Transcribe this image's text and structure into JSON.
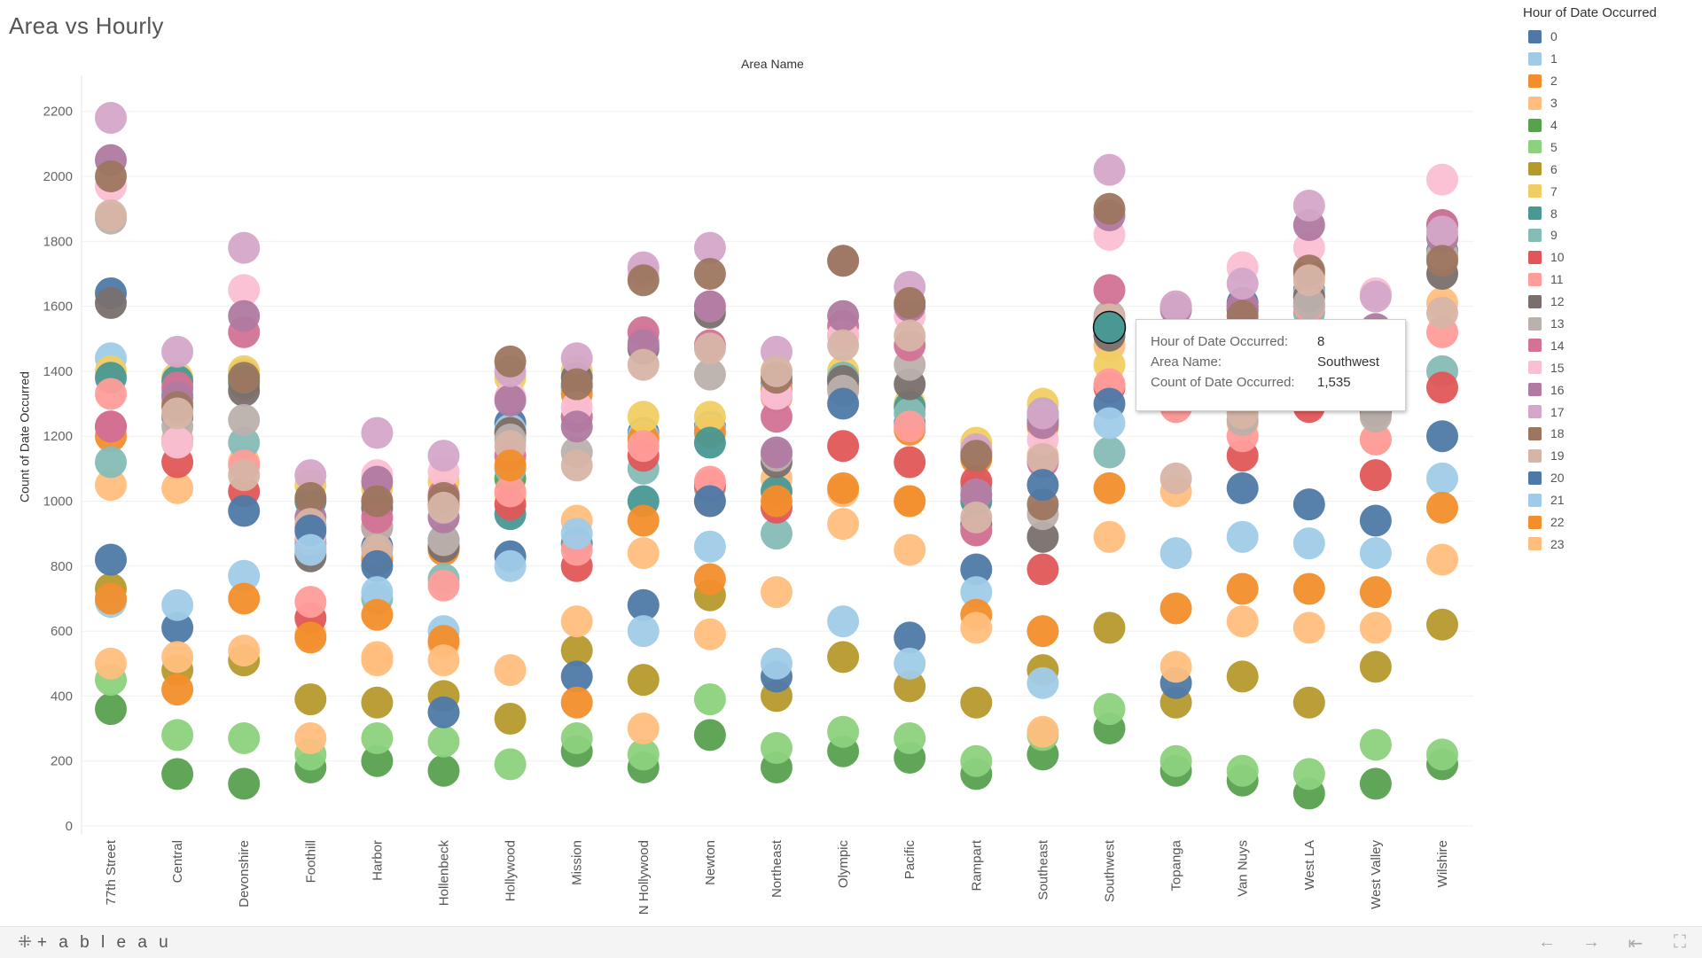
{
  "title": "Area  vs Hourly",
  "column_header": "Area Name",
  "footer": {
    "brand": "+ a b l e a u",
    "brand_mark": "⁜",
    "nav": {
      "back": "←",
      "forward": "→",
      "first": "⇤",
      "fullscreen": "⛶"
    }
  },
  "tooltip": {
    "rows": [
      {
        "key": "Hour of Date Occurred:",
        "value": "8"
      },
      {
        "key": "Area Name:",
        "value": "Southwest"
      },
      {
        "key": "Count of Date Occurred:",
        "value": "1,535"
      }
    ],
    "highlight": {
      "area": "Southwest",
      "hour": 8
    }
  },
  "chart_data": {
    "type": "scatter",
    "ylabel": "Count of Date Occurred",
    "xlabel": "Area Name",
    "ylim": [
      0,
      2250
    ],
    "yticks": [
      0,
      200,
      400,
      600,
      800,
      1000,
      1200,
      1400,
      1600,
      1800,
      2000,
      2200
    ],
    "grid": true,
    "legend": {
      "title": "Hour of Date Occurred",
      "position": "right"
    },
    "categories": [
      "77th Street",
      "Central",
      "Devonshire",
      "Foothill",
      "Harbor",
      "Hollenbeck",
      "Hollywood",
      "Mission",
      "N Hollywood",
      "Newton",
      "Northeast",
      "Olympic",
      "Pacific",
      "Rampart",
      "Southeast",
      "Southwest",
      "Topanga",
      "Van Nuys",
      "West LA",
      "West Valley",
      "Wilshire"
    ],
    "series": [
      {
        "name": "0",
        "color": "#4e79a7",
        "values": [
          1640,
          1330,
          1390,
          870,
          860,
          880,
          1240,
          1350,
          1210,
          1230,
          1360,
          1370,
          1240,
          1150,
          1250,
          1560,
          1320,
          1610,
          1650,
          1290,
          1770
        ]
      },
      {
        "name": "1",
        "color": "#a0cbe8",
        "values": [
          1440,
          1340,
          1380,
          860,
          830,
          860,
          1220,
          1340,
          1200,
          1220,
          1350,
          1360,
          1230,
          1140,
          1240,
          1550,
          1310,
          1600,
          1640,
          1280,
          1760
        ]
      },
      {
        "name": "2",
        "color": "#f28e2b",
        "values": [
          1200,
          1300,
          1360,
          850,
          820,
          850,
          1210,
          1330,
          1190,
          1210,
          1340,
          1350,
          1220,
          1130,
          1230,
          1540,
          1300,
          1590,
          1630,
          1270,
          1750
        ]
      },
      {
        "name": "3",
        "color": "#ffbe7d",
        "values": [
          1050,
          1040,
          1120,
          590,
          510,
          560,
          1020,
          940,
          840,
          1000,
          1070,
          1030,
          1000,
          1010,
          1140,
          1480,
          1030,
          1240,
          1580,
          1190,
          1610
        ]
      },
      {
        "name": "4",
        "color": "#59a14f",
        "values": [
          360,
          160,
          130,
          180,
          200,
          170,
          1070,
          230,
          180,
          280,
          180,
          230,
          210,
          160,
          220,
          300,
          170,
          140,
          100,
          130,
          190
        ]
      },
      {
        "name": "5",
        "color": "#8cd17d",
        "values": [
          450,
          280,
          270,
          220,
          270,
          260,
          190,
          270,
          220,
          390,
          240,
          290,
          270,
          200,
          280,
          360,
          200,
          170,
          160,
          250,
          220
        ]
      },
      {
        "name": "6",
        "color": "#b6992d",
        "values": [
          730,
          480,
          510,
          390,
          380,
          400,
          330,
          540,
          450,
          710,
          400,
          520,
          430,
          380,
          480,
          610,
          380,
          460,
          380,
          490,
          620
        ]
      },
      {
        "name": "7",
        "color": "#f1ce63",
        "values": [
          1400,
          1380,
          1400,
          1050,
          1040,
          1060,
          1380,
          1400,
          1260,
          1260,
          1400,
          1400,
          1300,
          1180,
          1300,
          1420,
          1400,
          1420,
          1690,
          1430,
          1820
        ]
      },
      {
        "name": "8",
        "color": "#499894",
        "values": [
          1380,
          1370,
          1370,
          1000,
          1000,
          1010,
          960,
          870,
          1000,
          1180,
          1030,
          1380,
          1290,
          1000,
          1270,
          1535,
          1390,
          1400,
          1600,
          1430,
          1850
        ]
      },
      {
        "name": "9",
        "color": "#86bcb6",
        "values": [
          1120,
          1180,
          1180,
          840,
          700,
          760,
          1100,
          1260,
          1100,
          1040,
          900,
          1380,
          1270,
          1040,
          1260,
          1150,
          1380,
          1390,
          1580,
          1400,
          1400
        ]
      },
      {
        "name": "10",
        "color": "#e15759",
        "values": [
          1230,
          1120,
          1030,
          640,
          920,
          990,
          990,
          800,
          1140,
          1050,
          980,
          1170,
          1120,
          1060,
          790,
          1350,
          1290,
          1140,
          1290,
          1080,
          1350
        ]
      },
      {
        "name": "11",
        "color": "#ff9d9a",
        "values": [
          1330,
          1190,
          1110,
          690,
          1000,
          740,
          1030,
          850,
          1170,
          1060,
          1320,
          1510,
          1230,
          920,
          1130,
          1360,
          1290,
          1200,
          1600,
          1190,
          1520
        ]
      },
      {
        "name": "12",
        "color": "#79706e",
        "values": [
          1610,
          1260,
          1340,
          830,
          980,
          860,
          1210,
          1380,
          1470,
          1580,
          1120,
          1370,
          1360,
          930,
          890,
          1510,
          1330,
          1590,
          1630,
          1280,
          1700
        ]
      },
      {
        "name": "13",
        "color": "#bab0ac",
        "values": [
          1870,
          1230,
          1250,
          880,
          920,
          880,
          1190,
          1150,
          1490,
          1390,
          1140,
          1340,
          1420,
          910,
          960,
          1570,
          1350,
          1250,
          1610,
          1260,
          1760
        ]
      },
      {
        "name": "14",
        "color": "#d37295",
        "values": [
          1230,
          1350,
          1520,
          920,
          950,
          1020,
          1140,
          1260,
          1520,
          1480,
          1260,
          1540,
          1480,
          910,
          1120,
          1650,
          1340,
          1600,
          1700,
          1420,
          1850
        ]
      },
      {
        "name": "15",
        "color": "#fabfd2",
        "values": [
          1970,
          1180,
          1650,
          900,
          1080,
          1090,
          1320,
          1290,
          1700,
          1600,
          1330,
          1510,
          1570,
          1020,
          1190,
          1820,
          1600,
          1720,
          1780,
          1640,
          1990
        ]
      },
      {
        "name": "16",
        "color": "#b07aa1",
        "values": [
          2050,
          1320,
          1570,
          950,
          1060,
          950,
          1310,
          1230,
          1480,
          1600,
          1150,
          1570,
          1600,
          1020,
          1240,
          1880,
          1590,
          1600,
          1850,
          1530,
          1810
        ]
      },
      {
        "name": "17",
        "color": "#d4a6c8",
        "values": [
          2180,
          1460,
          1780,
          1080,
          1210,
          1140,
          1400,
          1440,
          1720,
          1780,
          1460,
          1740,
          1660,
          1160,
          1270,
          2020,
          1600,
          1670,
          1910,
          1630,
          1830
        ]
      },
      {
        "name": "18",
        "color": "#9d7660",
        "values": [
          2000,
          1290,
          1380,
          1010,
          1000,
          1010,
          1430,
          1360,
          1680,
          1700,
          1380,
          1740,
          1610,
          1140,
          990,
          1900,
          1390,
          1570,
          1710,
          1430,
          1740
        ]
      },
      {
        "name": "19",
        "color": "#d7b5a6",
        "values": [
          1880,
          1270,
          1080,
          930,
          850,
          980,
          1170,
          1110,
          1420,
          1470,
          1400,
          1480,
          1510,
          950,
          1130,
          1560,
          1070,
          1270,
          1680,
          1460,
          1580
        ]
      },
      {
        "name": "20",
        "color": "#4e79a7",
        "values": [
          820,
          610,
          970,
          910,
          800,
          350,
          830,
          460,
          680,
          1000,
          460,
          1300,
          580,
          790,
          1050,
          1300,
          440,
          1040,
          990,
          940,
          1200
        ]
      },
      {
        "name": "21",
        "color": "#a0cbe8",
        "values": [
          690,
          680,
          770,
          850,
          720,
          600,
          800,
          900,
          600,
          860,
          500,
          630,
          500,
          720,
          440,
          1240,
          840,
          890,
          870,
          840,
          1070
        ]
      },
      {
        "name": "22",
        "color": "#f28e2b",
        "values": [
          700,
          420,
          700,
          580,
          650,
          570,
          1110,
          380,
          940,
          760,
          1000,
          1040,
          1000,
          650,
          600,
          1040,
          670,
          730,
          730,
          720,
          980
        ]
      },
      {
        "name": "23",
        "color": "#ffbe7d",
        "values": [
          500,
          520,
          540,
          270,
          520,
          510,
          480,
          630,
          300,
          590,
          720,
          930,
          850,
          610,
          290,
          890,
          490,
          630,
          610,
          610,
          820
        ]
      }
    ]
  }
}
